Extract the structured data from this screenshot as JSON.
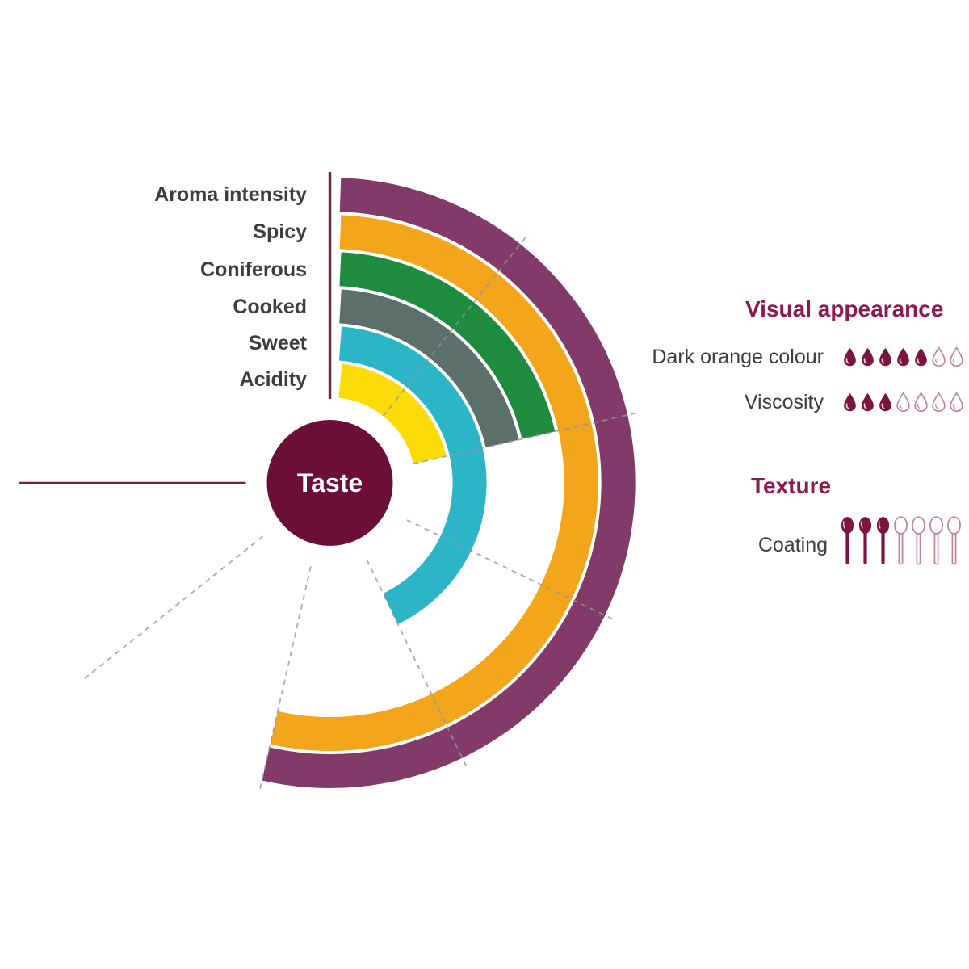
{
  "colors": {
    "background": "#ffffff",
    "maroon_dark": "#6b0f38",
    "axis_maroon": "#7a1f44",
    "title_maroon": "#8e1850",
    "icon_filled": "#7b1440",
    "icon_outline": "#be81a0",
    "label_text": "#3d3d3d",
    "gridline": "#9096a2"
  },
  "chart_data": {
    "type": "radial_bar",
    "center_label": "Taste",
    "scale_max": 7,
    "angle_span_deg": 270,
    "start_angle_deg": 0,
    "direction": "clockwise",
    "grid": "dashed radial lines at each unit (1-6), solid maroon axis lines at 0 and 7 units",
    "legend_position": "left",
    "series": [
      {
        "name": "Aroma intensity",
        "value": 5,
        "color": "#823a69"
      },
      {
        "name": "Spicy",
        "value": 5,
        "color": "#f3a51c"
      },
      {
        "name": "Coniferous",
        "value": 2,
        "color": "#1f8b3f"
      },
      {
        "name": "Cooked",
        "value": 2,
        "color": "#5b6f6b"
      },
      {
        "name": "Sweet",
        "value": 4,
        "color": "#2cb4c7"
      },
      {
        "name": "Acidity",
        "value": 2,
        "color": "#fcdc08"
      }
    ]
  },
  "right_panel": {
    "sections": [
      {
        "title": "Visual appearance",
        "rows": [
          {
            "label": "Dark orange colour",
            "icon": "droplet",
            "filled": 5,
            "total": 7
          },
          {
            "label": "Viscosity",
            "icon": "droplet",
            "filled": 3,
            "total": 7
          }
        ]
      },
      {
        "title": "Texture",
        "rows": [
          {
            "label": "Coating",
            "icon": "spoon",
            "filled": 3,
            "total": 7
          }
        ]
      }
    ]
  }
}
